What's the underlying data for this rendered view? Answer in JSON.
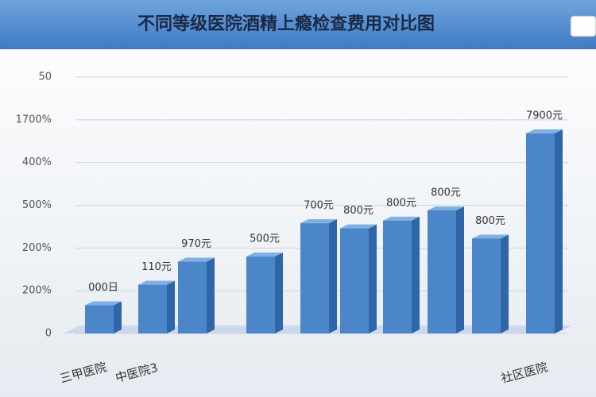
{
  "chart_data": {
    "type": "bar",
    "title": "不同等级医院酒精上瘾检查费用对比图",
    "categories": [
      "三甲医院",
      "中医院3",
      null,
      null,
      null,
      null,
      null,
      null,
      null,
      "社区医院"
    ],
    "values": [
      11,
      19,
      28,
      30,
      43,
      41,
      44,
      48,
      37,
      78
    ],
    "bar_labels": [
      "000日",
      "110元",
      "970元",
      "500元",
      "700元",
      "800元",
      "800元",
      "800元",
      "800元",
      "7900元"
    ],
    "ytick_labels": [
      "0",
      "200%",
      "200%",
      "500%",
      "400%",
      "1700%",
      "50"
    ],
    "color": "#4a86c8",
    "ylim": [
      0,
      100
    ],
    "grid": true
  }
}
